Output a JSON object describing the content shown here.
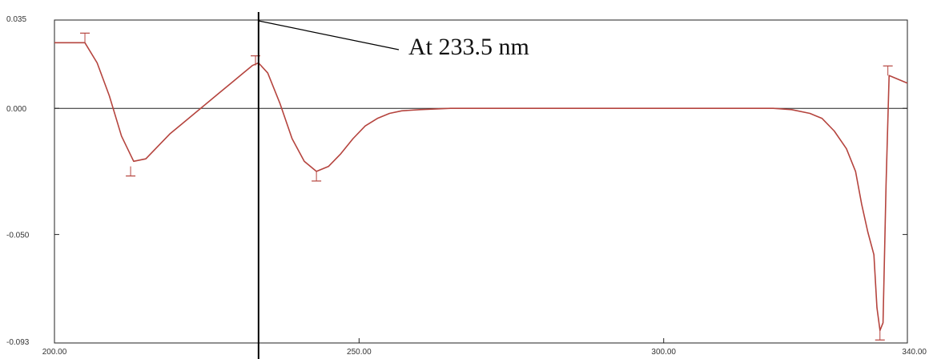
{
  "chart_data": {
    "type": "line",
    "title": "",
    "xlabel": "",
    "ylabel": "",
    "xlim": [
      200,
      340
    ],
    "ylim": [
      -0.093,
      0.035
    ],
    "grid": false,
    "x_ticks": [
      {
        "value": 200,
        "label": "200.00"
      },
      {
        "value": 250,
        "label": "250.00"
      },
      {
        "value": 300,
        "label": "300.00"
      },
      {
        "value": 340,
        "label": "340.00"
      }
    ],
    "y_ticks": [
      {
        "value": 0.035,
        "label": "0.035"
      },
      {
        "value": 0.0,
        "label": "0.000"
      },
      {
        "value": -0.05,
        "label": "-0.050"
      },
      {
        "value": -0.093,
        "label": "-0.093"
      }
    ],
    "zero_line": 0.0,
    "marker_line_x": 233.5,
    "annotation": {
      "text": "At 233.5 nm",
      "x": 233.5
    },
    "colors": {
      "series": "#b5443e",
      "axes": "#222222",
      "marker": "#000000"
    },
    "series": [
      {
        "x": [
          200,
          205,
          207,
          209,
          211,
          213,
          215,
          217,
          219,
          221,
          223,
          225,
          227,
          229,
          231,
          232.5,
          233.5,
          235,
          237,
          239,
          241,
          243,
          245,
          247,
          249,
          251,
          253,
          255,
          257,
          260,
          265,
          270,
          280,
          290,
          300,
          310,
          318,
          321,
          324,
          326,
          328,
          330,
          331.5,
          332.5,
          333.5,
          334.5,
          335,
          335.5,
          336,
          336.5,
          337,
          340
        ],
        "y": [
          0.026,
          0.026,
          0.018,
          0.005,
          -0.011,
          -0.021,
          -0.02,
          -0.015,
          -0.01,
          -0.006,
          -0.002,
          0.002,
          0.006,
          0.01,
          0.014,
          0.017,
          0.018,
          0.014,
          0.002,
          -0.012,
          -0.021,
          -0.025,
          -0.023,
          -0.018,
          -0.012,
          -0.007,
          -0.004,
          -0.002,
          -0.001,
          -0.0005,
          0.0,
          0.0,
          0.0,
          0.0,
          0.0,
          0.0,
          0.0,
          -0.0005,
          -0.002,
          -0.004,
          -0.009,
          -0.016,
          -0.025,
          -0.038,
          -0.049,
          -0.058,
          -0.079,
          -0.088,
          -0.085,
          -0.03,
          0.013,
          0.01
        ]
      }
    ],
    "peak_markers": [
      {
        "x": 205,
        "y": 0.026
      },
      {
        "x": 212.5,
        "y": -0.023
      },
      {
        "x": 233,
        "y": 0.017
      },
      {
        "x": 243,
        "y": -0.025
      },
      {
        "x": 335.5,
        "y": -0.088
      },
      {
        "x": 336.8,
        "y": 0.013
      }
    ]
  }
}
